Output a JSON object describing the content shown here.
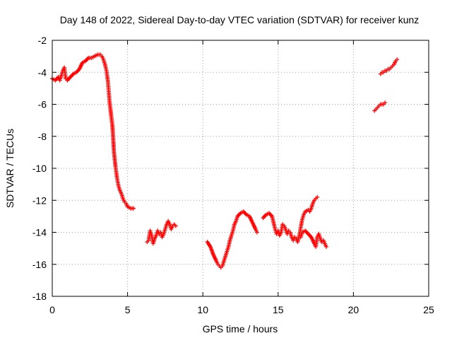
{
  "chart_data": {
    "type": "scatter",
    "title": "Day 148 of 2022, Sidereal Day-to-day VTEC variation (SDTVAR) for receiver kunz",
    "xlabel": "GPS time / hours",
    "ylabel": "SDTVAR / TECUs",
    "xlim": [
      0,
      25
    ],
    "ylim": [
      -18,
      -2
    ],
    "xticks": [
      0,
      5,
      10,
      15,
      20,
      25
    ],
    "yticks": [
      -18,
      -16,
      -14,
      -12,
      -10,
      -8,
      -6,
      -4,
      -2
    ],
    "xtick_labels": [
      "0",
      "5",
      "10",
      "15",
      "20",
      "25"
    ],
    "ytick_labels": [
      "-18",
      "-16",
      "-14",
      "-12",
      "-10",
      "-8",
      "-6",
      "-4",
      "-2"
    ],
    "grid": true,
    "marker": "+",
    "series_color": "#ff0000",
    "series": [
      {
        "name": "segment-1",
        "points": [
          [
            0.0,
            -4.4
          ],
          [
            0.2,
            -4.5
          ],
          [
            0.4,
            -4.3
          ],
          [
            0.5,
            -4.5
          ],
          [
            0.6,
            -4.2
          ],
          [
            0.7,
            -3.9
          ],
          [
            0.8,
            -3.7
          ],
          [
            0.9,
            -4.4
          ],
          [
            1.0,
            -4.5
          ],
          [
            1.2,
            -4.3
          ],
          [
            1.4,
            -4.1
          ],
          [
            1.6,
            -4.0
          ],
          [
            1.8,
            -3.8
          ],
          [
            2.0,
            -3.4
          ],
          [
            2.2,
            -3.3
          ],
          [
            2.4,
            -3.1
          ],
          [
            2.6,
            -3.1
          ],
          [
            2.8,
            -3.0
          ],
          [
            3.0,
            -2.9
          ],
          [
            3.2,
            -2.9
          ],
          [
            3.3,
            -3.0
          ],
          [
            3.4,
            -3.2
          ],
          [
            3.5,
            -3.5
          ],
          [
            3.6,
            -3.9
          ],
          [
            3.7,
            -4.6
          ],
          [
            3.75,
            -5.2
          ],
          [
            3.8,
            -5.8
          ],
          [
            3.9,
            -6.6
          ],
          [
            4.0,
            -7.4
          ],
          [
            4.05,
            -8.2
          ],
          [
            4.1,
            -9.0
          ],
          [
            4.2,
            -9.9
          ],
          [
            4.3,
            -10.6
          ],
          [
            4.4,
            -11.1
          ],
          [
            4.5,
            -11.4
          ],
          [
            4.6,
            -11.6
          ],
          [
            4.7,
            -11.9
          ],
          [
            4.8,
            -12.1
          ],
          [
            4.9,
            -12.2
          ],
          [
            5.0,
            -12.4
          ],
          [
            5.2,
            -12.5
          ],
          [
            5.4,
            -12.5
          ]
        ]
      },
      {
        "name": "segment-2",
        "points": [
          [
            6.3,
            -14.6
          ],
          [
            6.4,
            -14.5
          ],
          [
            6.5,
            -13.9
          ],
          [
            6.6,
            -14.2
          ],
          [
            6.7,
            -14.7
          ],
          [
            6.8,
            -14.4
          ],
          [
            6.9,
            -14.2
          ],
          [
            7.0,
            -13.9
          ],
          [
            7.1,
            -14.1
          ],
          [
            7.2,
            -14.0
          ],
          [
            7.3,
            -14.3
          ],
          [
            7.4,
            -14.1
          ],
          [
            7.5,
            -13.8
          ],
          [
            7.6,
            -13.5
          ],
          [
            7.7,
            -13.3
          ],
          [
            7.8,
            -13.5
          ],
          [
            7.9,
            -13.8
          ],
          [
            8.0,
            -13.6
          ],
          [
            8.1,
            -13.5
          ],
          [
            8.2,
            -13.6
          ]
        ]
      },
      {
        "name": "segment-3",
        "points": [
          [
            10.3,
            -14.6
          ],
          [
            10.5,
            -14.9
          ],
          [
            10.7,
            -15.4
          ],
          [
            10.9,
            -15.8
          ],
          [
            11.0,
            -16.0
          ],
          [
            11.1,
            -16.1
          ],
          [
            11.2,
            -16.2
          ],
          [
            11.3,
            -16.1
          ],
          [
            11.4,
            -15.8
          ],
          [
            11.5,
            -15.5
          ],
          [
            11.6,
            -15.2
          ],
          [
            11.7,
            -14.9
          ],
          [
            11.8,
            -14.5
          ],
          [
            11.9,
            -14.2
          ],
          [
            12.0,
            -13.9
          ],
          [
            12.1,
            -13.5
          ],
          [
            12.2,
            -13.3
          ],
          [
            12.3,
            -13.0
          ],
          [
            12.5,
            -12.8
          ],
          [
            12.7,
            -12.7
          ],
          [
            12.9,
            -12.9
          ],
          [
            13.1,
            -13.0
          ],
          [
            13.3,
            -13.4
          ],
          [
            13.5,
            -13.8
          ],
          [
            13.6,
            -14.0
          ]
        ]
      },
      {
        "name": "segment-4",
        "points": [
          [
            14.0,
            -13.1
          ],
          [
            14.2,
            -12.9
          ],
          [
            14.4,
            -12.8
          ],
          [
            14.6,
            -13.0
          ],
          [
            14.7,
            -13.4
          ],
          [
            14.8,
            -13.8
          ],
          [
            14.9,
            -14.1
          ],
          [
            15.0,
            -13.9
          ],
          [
            15.1,
            -14.2
          ],
          [
            15.2,
            -14.0
          ],
          [
            15.3,
            -13.5
          ],
          [
            15.4,
            -13.6
          ],
          [
            15.5,
            -13.8
          ],
          [
            15.6,
            -14.1
          ],
          [
            15.7,
            -13.9
          ],
          [
            15.8,
            -14.0
          ],
          [
            15.9,
            -14.3
          ],
          [
            16.0,
            -14.5
          ],
          [
            16.1,
            -14.3
          ],
          [
            16.2,
            -14.4
          ],
          [
            16.3,
            -14.6
          ],
          [
            16.4,
            -14.2
          ],
          [
            16.5,
            -13.7
          ],
          [
            16.6,
            -13.2
          ],
          [
            16.7,
            -12.9
          ],
          [
            16.8,
            -12.7
          ],
          [
            17.0,
            -12.6
          ],
          [
            17.1,
            -12.7
          ],
          [
            17.2,
            -12.5
          ],
          [
            17.3,
            -12.2
          ],
          [
            17.4,
            -12.0
          ],
          [
            17.5,
            -11.9
          ],
          [
            17.6,
            -11.8
          ]
        ]
      },
      {
        "name": "segment-5",
        "points": [
          [
            16.5,
            -14.3
          ],
          [
            16.6,
            -14.0
          ],
          [
            16.8,
            -13.9
          ],
          [
            17.0,
            -14.1
          ],
          [
            17.2,
            -14.3
          ],
          [
            17.4,
            -14.7
          ],
          [
            17.5,
            -14.9
          ],
          [
            17.6,
            -14.3
          ],
          [
            17.7,
            -14.1
          ],
          [
            17.8,
            -14.4
          ],
          [
            17.9,
            -14.6
          ],
          [
            18.0,
            -14.5
          ],
          [
            18.1,
            -14.7
          ],
          [
            18.2,
            -14.9
          ]
        ]
      },
      {
        "name": "segment-6",
        "points": [
          [
            21.4,
            -6.4
          ],
          [
            21.5,
            -6.3
          ],
          [
            21.6,
            -6.2
          ],
          [
            21.7,
            -6.1
          ],
          [
            21.8,
            -6.0
          ],
          [
            21.9,
            -6.0
          ],
          [
            22.0,
            -6.0
          ],
          [
            22.1,
            -5.9
          ]
        ]
      },
      {
        "name": "segment-7",
        "points": [
          [
            21.8,
            -4.1
          ],
          [
            21.9,
            -4.0
          ],
          [
            22.0,
            -4.0
          ],
          [
            22.1,
            -3.9
          ],
          [
            22.2,
            -3.9
          ],
          [
            22.3,
            -3.8
          ],
          [
            22.4,
            -3.8
          ],
          [
            22.5,
            -3.7
          ],
          [
            22.6,
            -3.6
          ],
          [
            22.7,
            -3.5
          ],
          [
            22.8,
            -3.3
          ],
          [
            22.9,
            -3.2
          ]
        ]
      }
    ]
  }
}
